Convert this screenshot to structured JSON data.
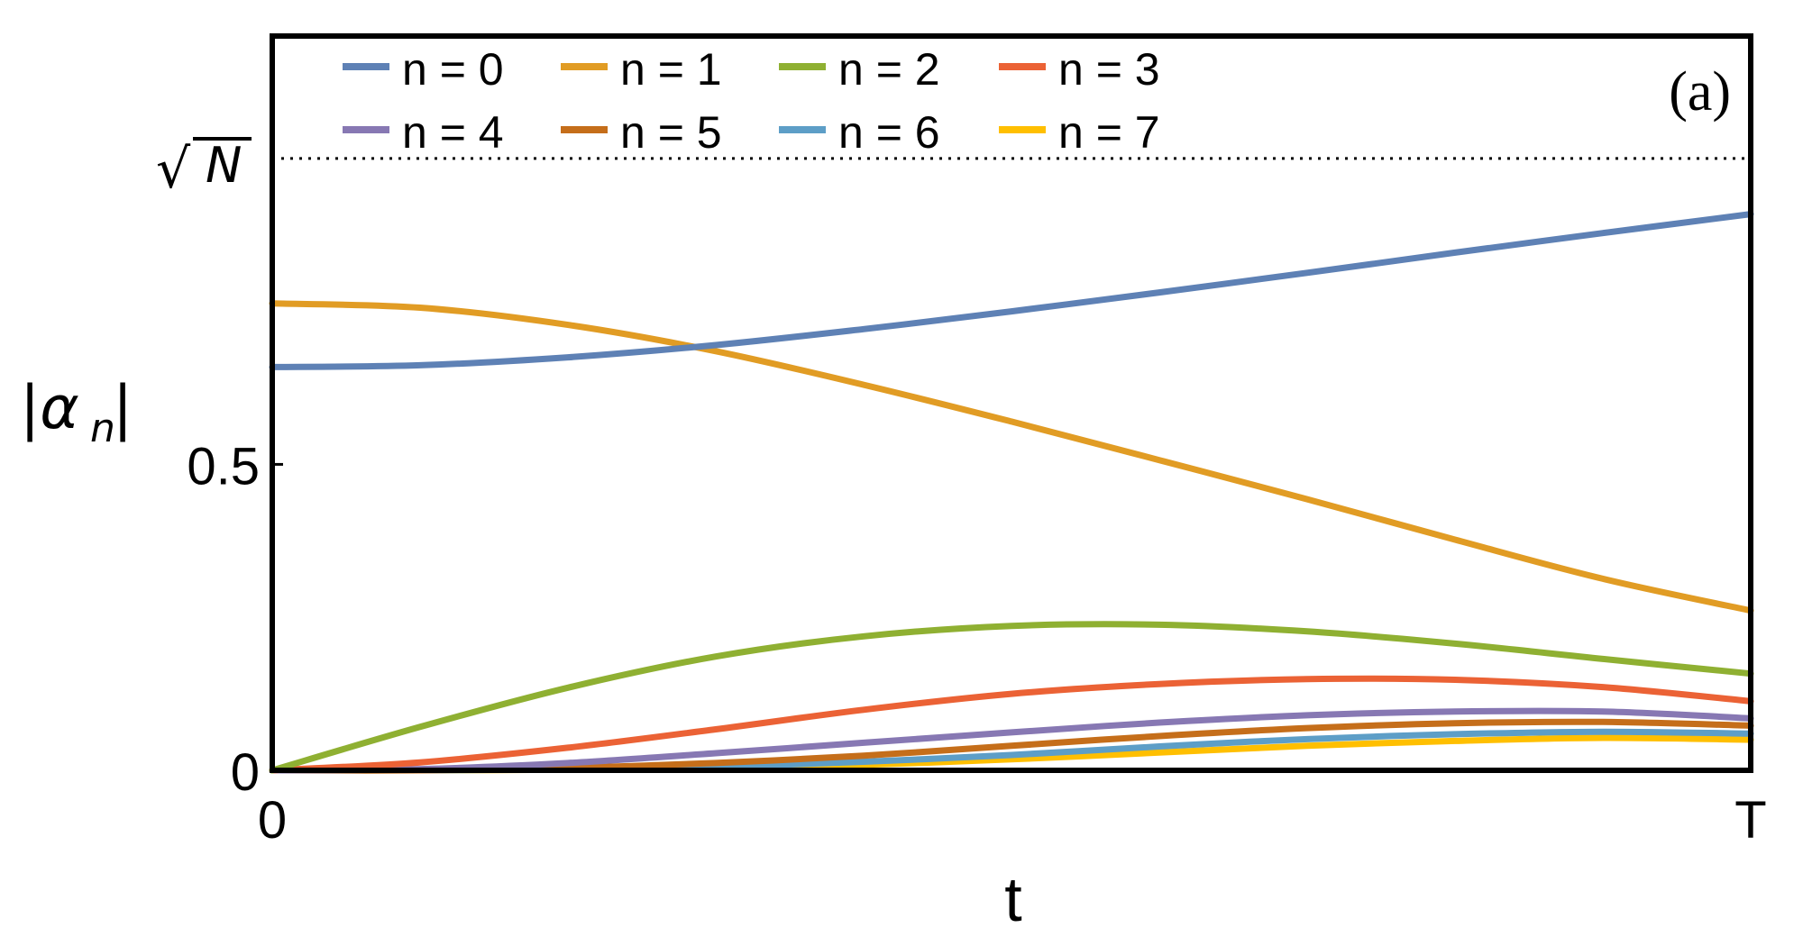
{
  "chart_data": {
    "type": "line",
    "panel_label": "(a)",
    "xlabel": "t",
    "ylabel": {
      "main": "|α",
      "sub": "n",
      "close": "|"
    },
    "x_ticks": [
      {
        "value": 0,
        "label": "0"
      },
      {
        "value": 1,
        "label": "T"
      }
    ],
    "y_ticks": [
      {
        "value": 0,
        "label": "0"
      },
      {
        "value": 0.5,
        "label": "0.5"
      }
    ],
    "reference_line": {
      "value": 1.0,
      "label_main": "√",
      "label_arg": "N",
      "style": "dotted"
    },
    "xlim": [
      0,
      1
    ],
    "ylim": [
      0,
      1.2
    ],
    "legend_placement": "top",
    "series": [
      {
        "name": "n = 0",
        "color": "#5e81b5",
        "x": [
          0,
          0.1,
          0.2,
          0.3,
          0.4,
          0.5,
          0.6,
          0.7,
          0.8,
          0.9,
          1.0
        ],
        "values": [
          0.659,
          0.662,
          0.675,
          0.695,
          0.721,
          0.75,
          0.781,
          0.813,
          0.846,
          0.878,
          0.909
        ]
      },
      {
        "name": "n = 1",
        "color": "#e19c24",
        "x": [
          0,
          0.1,
          0.2,
          0.3,
          0.4,
          0.5,
          0.6,
          0.7,
          0.8,
          0.9,
          1.0
        ],
        "values": [
          0.763,
          0.756,
          0.728,
          0.685,
          0.63,
          0.57,
          0.507,
          0.443,
          0.377,
          0.313,
          0.261
        ]
      },
      {
        "name": "n = 2",
        "color": "#8fb032",
        "x": [
          0,
          0.1,
          0.2,
          0.3,
          0.4,
          0.5,
          0.6,
          0.7,
          0.8,
          0.9,
          1.0
        ],
        "values": [
          0.0,
          0.071,
          0.135,
          0.186,
          0.219,
          0.236,
          0.238,
          0.227,
          0.207,
          0.182,
          0.158
        ]
      },
      {
        "name": "n = 3",
        "color": "#eb6235",
        "x": [
          0,
          0.1,
          0.2,
          0.3,
          0.4,
          0.5,
          0.6,
          0.7,
          0.8,
          0.9,
          1.0
        ],
        "values": [
          0.0,
          0.013,
          0.037,
          0.067,
          0.099,
          0.125,
          0.141,
          0.149,
          0.148,
          0.136,
          0.113
        ]
      },
      {
        "name": "n = 4",
        "color": "#8778b3",
        "x": [
          0,
          0.1,
          0.2,
          0.3,
          0.4,
          0.5,
          0.6,
          0.7,
          0.8,
          0.9,
          1.0
        ],
        "values": [
          0.0,
          0.002,
          0.012,
          0.028,
          0.045,
          0.062,
          0.078,
          0.09,
          0.096,
          0.096,
          0.085
        ]
      },
      {
        "name": "n = 5",
        "color": "#c56e1a",
        "x": [
          0,
          0.1,
          0.2,
          0.3,
          0.4,
          0.5,
          0.6,
          0.7,
          0.8,
          0.9,
          1.0
        ],
        "values": [
          0.0,
          0.0,
          0.004,
          0.012,
          0.024,
          0.04,
          0.056,
          0.069,
          0.077,
          0.079,
          0.073
        ]
      },
      {
        "name": "n = 6",
        "color": "#5d9ec7",
        "x": [
          0,
          0.1,
          0.2,
          0.3,
          0.4,
          0.5,
          0.6,
          0.7,
          0.8,
          0.9,
          1.0
        ],
        "values": [
          0.0,
          0.0,
          0.002,
          0.006,
          0.014,
          0.025,
          0.039,
          0.051,
          0.059,
          0.063,
          0.06
        ]
      },
      {
        "name": "n = 7",
        "color": "#ffbf00",
        "x": [
          0,
          0.1,
          0.2,
          0.3,
          0.4,
          0.5,
          0.6,
          0.7,
          0.8,
          0.9,
          1.0
        ],
        "values": [
          0.0,
          0.0,
          0.001,
          0.004,
          0.009,
          0.018,
          0.029,
          0.04,
          0.048,
          0.053,
          0.05
        ]
      }
    ]
  }
}
